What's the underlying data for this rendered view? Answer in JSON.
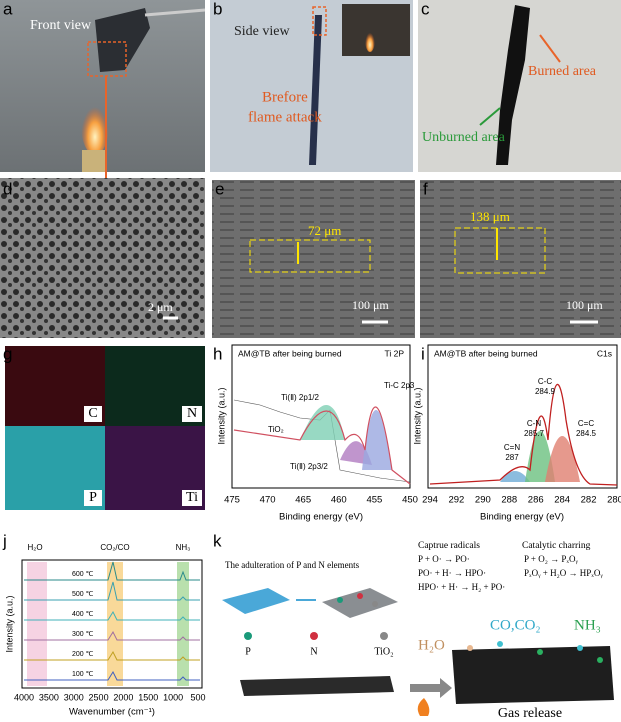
{
  "panels": {
    "a": {
      "label": "a",
      "view": "Front view"
    },
    "b": {
      "label": "b",
      "view": "Side view",
      "before": "Brefore",
      "flame": "flame attack"
    },
    "c": {
      "label": "c",
      "burned": "Burned area",
      "unburned": "Unburned area"
    },
    "d": {
      "label": "d",
      "scale": "2 μm"
    },
    "e": {
      "label": "e",
      "measure": "72 μm",
      "scale": "100 μm"
    },
    "f": {
      "label": "f",
      "measure": "138 μm",
      "scale": "100 μm"
    },
    "g": {
      "label": "g",
      "elements": [
        "C",
        "N",
        "P",
        "Ti"
      ]
    },
    "h": {
      "label": "h",
      "title": "AM@TB after being burned",
      "tag": "Ti 2P",
      "ylabel": "Intensity (a.u.)",
      "xlabel": "Binding energy (eV)",
      "xticks": [
        "475",
        "470",
        "465",
        "460",
        "455",
        "450"
      ],
      "peaks": [
        "Ti(Ⅱ) 2p1/2",
        "Ti-C 2p3",
        "TiO₂",
        "Ti(Ⅱ) 2p3/2"
      ]
    },
    "i": {
      "label": "i",
      "title": "AM@TB after being burned",
      "tag": "C1s",
      "ylabel": "Intensity (a.u.)",
      "xlabel": "Binding energy (eV)",
      "xticks": [
        "294",
        "292",
        "290",
        "288",
        "286",
        "284",
        "282",
        "280"
      ],
      "peaks": [
        "C-C",
        "284.9",
        "C-N",
        "285.7",
        "C=C",
        "284.5",
        "C=N",
        "287"
      ]
    },
    "j": {
      "label": "j",
      "ylabel": "Intensity (a.u.)",
      "xlabel": "Wavenumber (cm⁻¹)",
      "xticks": [
        "4000",
        "3500",
        "3000",
        "2500",
        "2000",
        "1500",
        "1000",
        "500"
      ],
      "bands": [
        "H₂O",
        "CO₂/CO",
        "NH₃"
      ],
      "temps": [
        "600 ℃",
        "500 ℃",
        "400 ℃",
        "300 ℃",
        "200 ℃",
        "100 ℃"
      ]
    },
    "k": {
      "label": "k",
      "adulteration": "The adulteration of P and N elements",
      "radicals": "Captrue radicals",
      "r1": "P + O· → PO·",
      "r2": "PO· + H· → HPO·",
      "r3": "HPO· + H· → H₂ + PO·",
      "charring": "Catalytic charring",
      "c1": "P + O₂ → PₓOᵧ",
      "c2": "PₓOᵧ + H₂O → HPₓOᵧ",
      "legend": [
        "P",
        "N",
        "TiO₂"
      ],
      "gases": [
        "CO,CO₂",
        "NH₃",
        "H₂O"
      ],
      "release": "Gas release"
    }
  }
}
